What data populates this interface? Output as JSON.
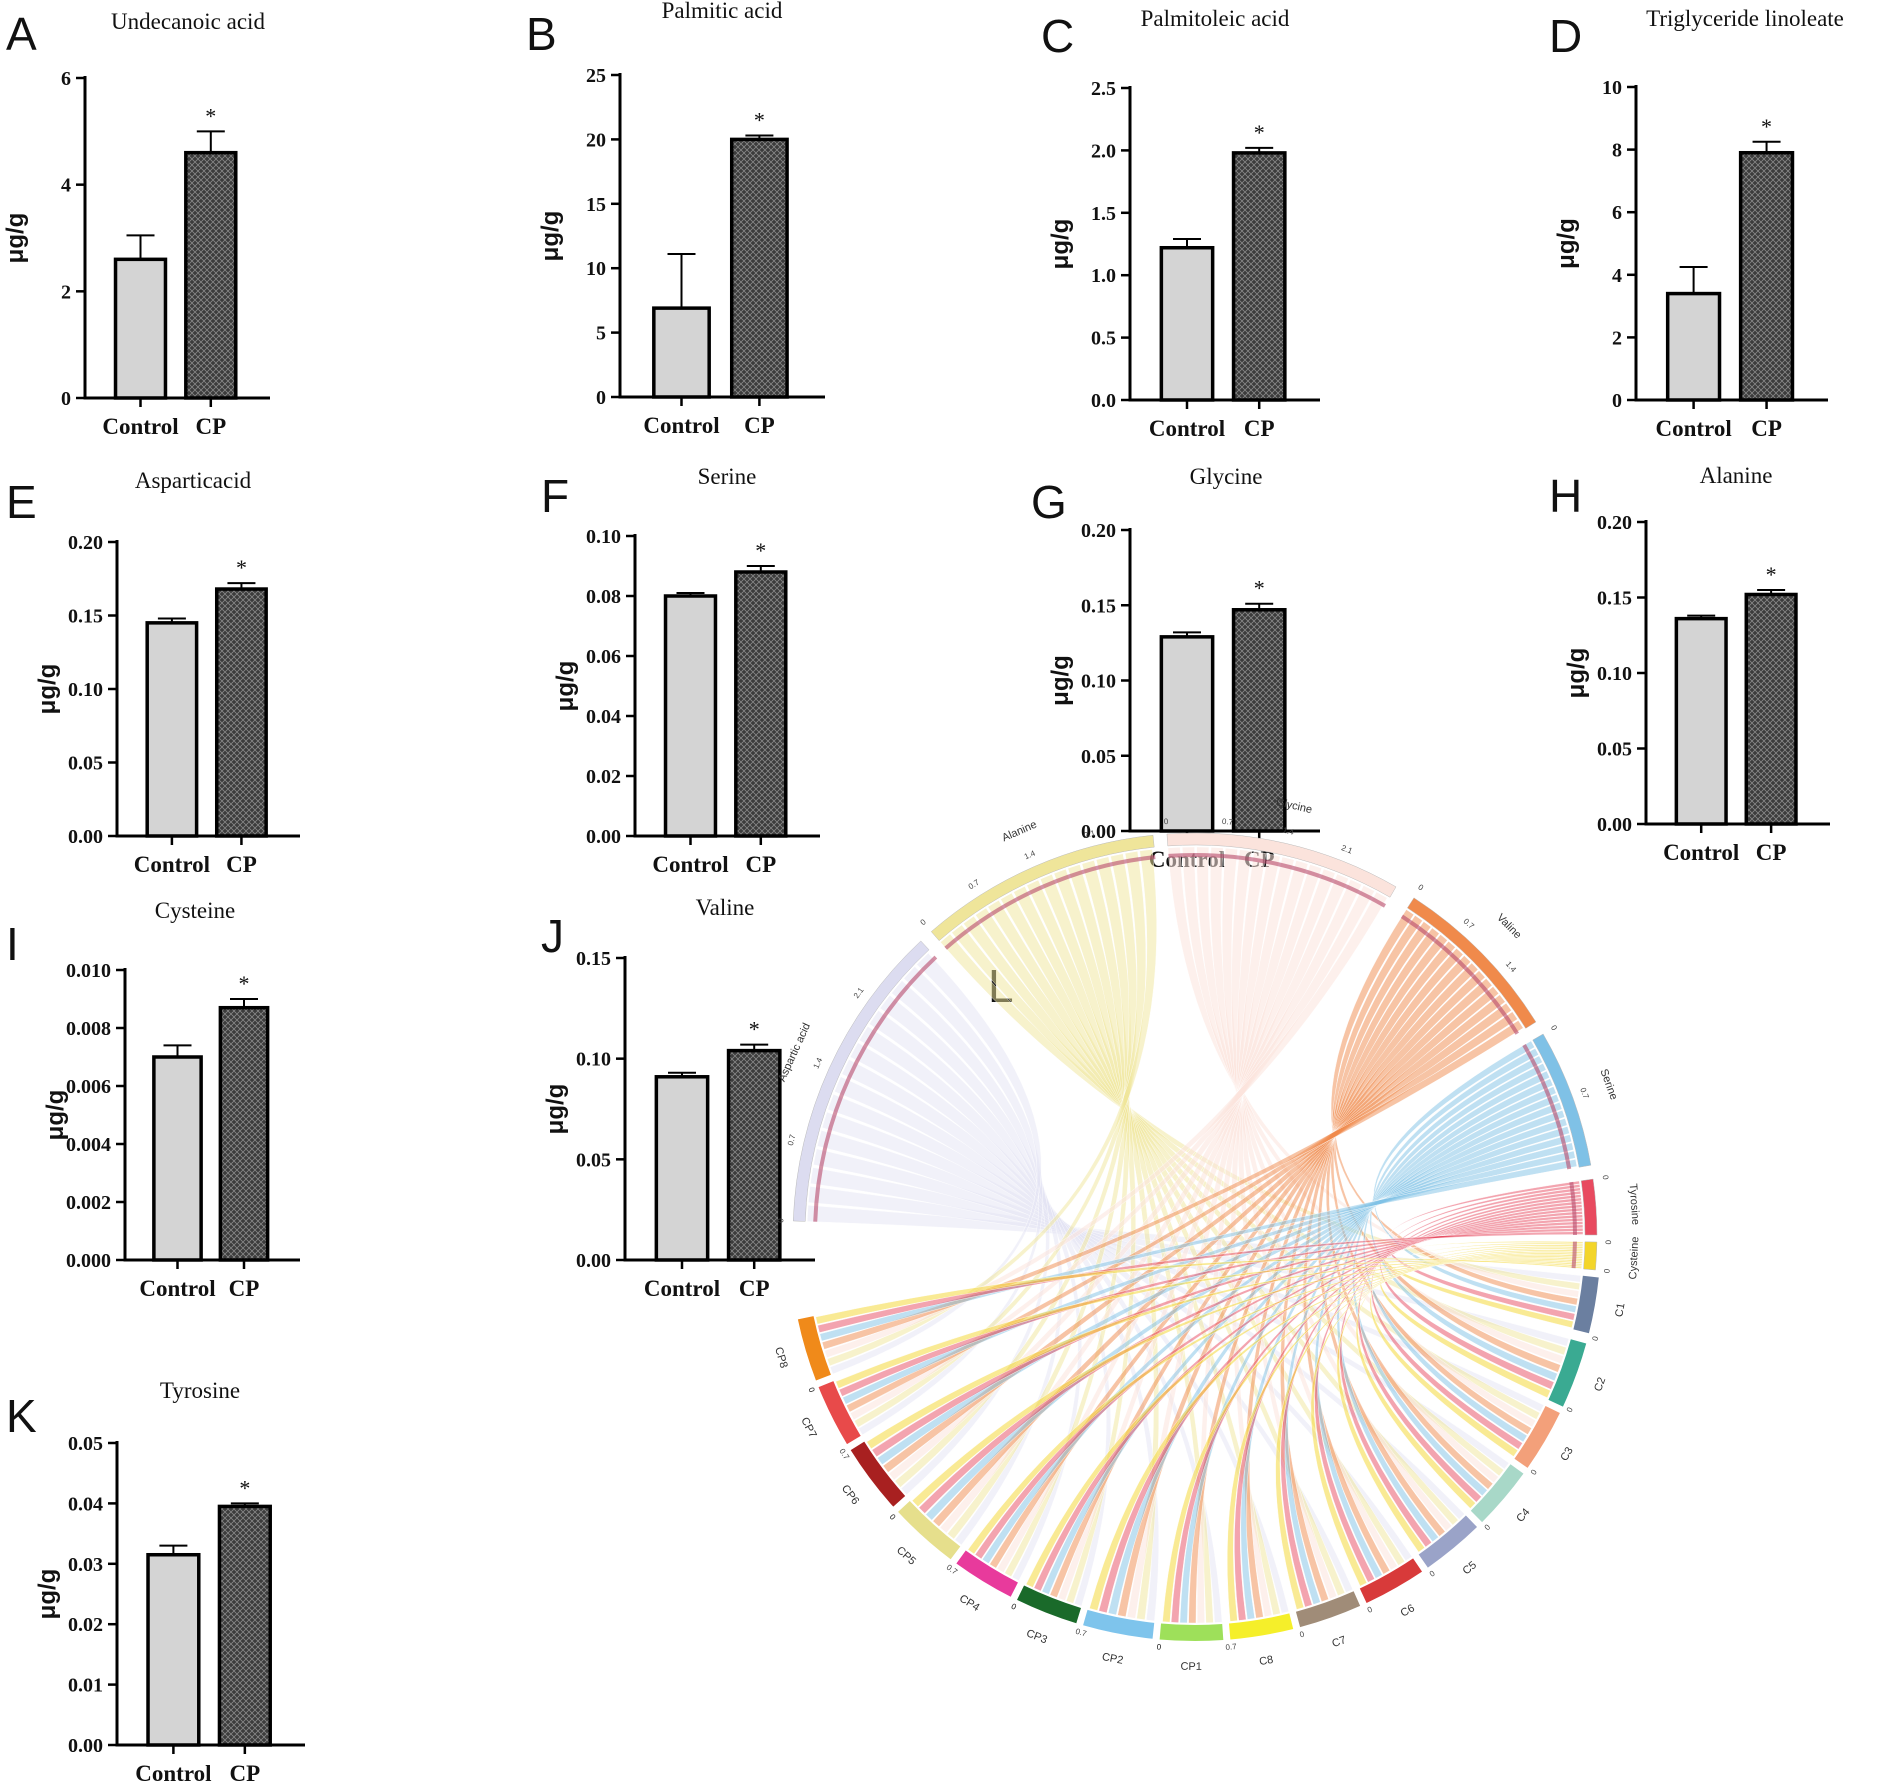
{
  "chart_data": [
    {
      "id": "A",
      "type": "bar",
      "title": "Undecanoic acid",
      "ylabel": "μg/g",
      "categories": [
        "Control",
        "CP"
      ],
      "values": [
        2.6,
        4.6
      ],
      "errors": [
        0.45,
        0.4
      ],
      "ylim": [
        0,
        6
      ],
      "yticks": [
        "0",
        "2",
        "4",
        "6"
      ],
      "significance": [
        "",
        "*"
      ]
    },
    {
      "id": "B",
      "type": "bar",
      "title": "Palmitic acid",
      "ylabel": "μg/g",
      "categories": [
        "Control",
        "CP"
      ],
      "values": [
        6.9,
        20.0
      ],
      "errors": [
        4.2,
        0.3
      ],
      "ylim": [
        0,
        25
      ],
      "yticks": [
        "0",
        "5",
        "10",
        "15",
        "20",
        "25"
      ],
      "significance": [
        "",
        "*"
      ]
    },
    {
      "id": "C",
      "type": "bar",
      "title": "Palmitoleic acid",
      "ylabel": "μg/g",
      "categories": [
        "Control",
        "CP"
      ],
      "values": [
        1.22,
        1.98
      ],
      "errors": [
        0.07,
        0.04
      ],
      "ylim": [
        0,
        2.5
      ],
      "yticks": [
        "0.0",
        "0.5",
        "1.0",
        "1.5",
        "2.0",
        "2.5"
      ],
      "significance": [
        "",
        "*"
      ]
    },
    {
      "id": "D",
      "type": "bar",
      "title": "Triglyceride linoleate",
      "ylabel": "μg/g",
      "categories": [
        "Control",
        "CP"
      ],
      "values": [
        3.4,
        7.9
      ],
      "errors": [
        0.85,
        0.35
      ],
      "ylim": [
        0,
        10
      ],
      "yticks": [
        "0",
        "2",
        "4",
        "6",
        "8",
        "10"
      ],
      "significance": [
        "",
        "*"
      ]
    },
    {
      "id": "E",
      "type": "bar",
      "title": "Asparticacid",
      "ylabel": "μg/g",
      "categories": [
        "Control",
        "CP"
      ],
      "values": [
        0.145,
        0.168
      ],
      "errors": [
        0.003,
        0.004
      ],
      "ylim": [
        0,
        0.2
      ],
      "yticks": [
        "0.00",
        "0.05",
        "0.10",
        "0.15",
        "0.20"
      ],
      "significance": [
        "",
        "*"
      ]
    },
    {
      "id": "F",
      "type": "bar",
      "title": "Serine",
      "ylabel": "μg/g",
      "categories": [
        "Control",
        "CP"
      ],
      "values": [
        0.08,
        0.088
      ],
      "errors": [
        0.001,
        0.002
      ],
      "ylim": [
        0,
        0.1
      ],
      "yticks": [
        "0.00",
        "0.02",
        "0.04",
        "0.06",
        "0.08",
        "0.10"
      ],
      "significance": [
        "",
        "*"
      ]
    },
    {
      "id": "G",
      "type": "bar",
      "title": "Glycine",
      "ylabel": "μg/g",
      "categories": [
        "Control",
        "CP"
      ],
      "values": [
        0.129,
        0.147
      ],
      "errors": [
        0.003,
        0.004
      ],
      "ylim": [
        0,
        0.2
      ],
      "yticks": [
        "0.00",
        "0.05",
        "0.10",
        "0.15",
        "0.20"
      ],
      "significance": [
        "",
        "*"
      ]
    },
    {
      "id": "H",
      "type": "bar",
      "title": "Alanine",
      "ylabel": "μg/g",
      "categories": [
        "Control",
        "CP"
      ],
      "values": [
        0.136,
        0.152
      ],
      "errors": [
        0.002,
        0.003
      ],
      "ylim": [
        0,
        0.2
      ],
      "yticks": [
        "0.00",
        "0.05",
        "0.10",
        "0.15",
        "0.20"
      ],
      "significance": [
        "",
        "*"
      ]
    },
    {
      "id": "I",
      "type": "bar",
      "title": "Cysteine",
      "ylabel": "μg/g",
      "categories": [
        "Control",
        "CP"
      ],
      "values": [
        0.007,
        0.0087
      ],
      "errors": [
        0.0004,
        0.0003
      ],
      "ylim": [
        0,
        0.01
      ],
      "yticks": [
        "0.000",
        "0.002",
        "0.004",
        "0.006",
        "0.008",
        "0.010"
      ],
      "significance": [
        "",
        "*"
      ]
    },
    {
      "id": "J",
      "type": "bar",
      "title": "Valine",
      "ylabel": "μg/g",
      "categories": [
        "Control",
        "CP"
      ],
      "values": [
        0.091,
        0.104
      ],
      "errors": [
        0.002,
        0.003
      ],
      "ylim": [
        0,
        0.15
      ],
      "yticks": [
        "0.00",
        "0.05",
        "0.10",
        "0.15"
      ],
      "significance": [
        "",
        "*"
      ]
    },
    {
      "id": "K",
      "type": "bar",
      "title": "Tyrosine",
      "ylabel": "μg/g",
      "categories": [
        "Control",
        "CP"
      ],
      "values": [
        0.0315,
        0.0395
      ],
      "errors": [
        0.0015,
        0.0005
      ],
      "ylim": [
        0,
        0.05
      ],
      "yticks": [
        "0.00",
        "0.01",
        "0.02",
        "0.03",
        "0.04",
        "0.05"
      ],
      "significance": [
        "",
        "*"
      ]
    },
    {
      "id": "L",
      "type": "chord",
      "metabolites": [
        {
          "name": "Aspartic acid",
          "color": "#e3e3f4",
          "ticks": [
            "0",
            "0.7",
            "1.4",
            "2.1"
          ]
        },
        {
          "name": "Alanine",
          "color": "#efe59a",
          "ticks": [
            "0",
            "0.7",
            "1.4",
            "2.1"
          ]
        },
        {
          "name": "Glycine",
          "color": "#fbe3dc",
          "ticks": [
            "0",
            "0.7",
            "1.4",
            "2.1"
          ]
        },
        {
          "name": "Valine",
          "color": "#f08a4b",
          "ticks": [
            "0",
            "0.7",
            "1.4"
          ]
        },
        {
          "name": "Serine",
          "color": "#7fc1e6",
          "ticks": [
            "0",
            "0.7"
          ]
        },
        {
          "name": "Tyrosine",
          "color": "#e84a5f",
          "ticks": [
            "0"
          ]
        },
        {
          "name": "Cysteine",
          "color": "#f3d52a",
          "ticks": [
            "0"
          ]
        }
      ],
      "samples": [
        {
          "name": "C1",
          "color": "#6b7fa0",
          "ticks": [
            "0"
          ]
        },
        {
          "name": "C2",
          "color": "#3aaa92",
          "ticks": [
            "0"
          ]
        },
        {
          "name": "C3",
          "color": "#f3a07a",
          "ticks": [
            "0"
          ]
        },
        {
          "name": "C4",
          "color": "#a8d8c8",
          "ticks": [
            "0"
          ]
        },
        {
          "name": "C5",
          "color": "#9aa3c8",
          "ticks": [
            "0"
          ]
        },
        {
          "name": "C6",
          "color": "#d83a3a",
          "ticks": [
            "0"
          ]
        },
        {
          "name": "C7",
          "color": "#a08c78",
          "ticks": [
            "0"
          ]
        },
        {
          "name": "C8",
          "color": "#f5ef2a",
          "ticks": [
            "0"
          ]
        },
        {
          "name": "CP1",
          "color": "#9ee05a",
          "ticks": [
            "0.7",
            "0"
          ]
        },
        {
          "name": "CP2",
          "color": "#7ec4ec",
          "ticks": [
            "0"
          ]
        },
        {
          "name": "CP3",
          "color": "#1a6a2a",
          "ticks": [
            "0.7",
            "0"
          ]
        },
        {
          "name": "CP4",
          "color": "#e83a9c",
          "ticks": [
            "0"
          ]
        },
        {
          "name": "CP5",
          "color": "#e6df8c",
          "ticks": [
            "0.7",
            "0"
          ]
        },
        {
          "name": "CP6",
          "color": "#a82020",
          "ticks": [
            "0"
          ]
        },
        {
          "name": "CP7",
          "color": "#e84a4a",
          "ticks": [
            "0.7",
            "0"
          ]
        },
        {
          "name": "CP8",
          "color": "#f08a1a",
          "ticks": [
            "0"
          ]
        }
      ]
    }
  ],
  "panel_labels": [
    "A",
    "B",
    "C",
    "D",
    "E",
    "F",
    "G",
    "H",
    "I",
    "J",
    "K",
    "L"
  ],
  "colors": {
    "control_fill": "#d4d4d4",
    "cp_fill": "#3c3c3c",
    "axis": "#000000"
  }
}
